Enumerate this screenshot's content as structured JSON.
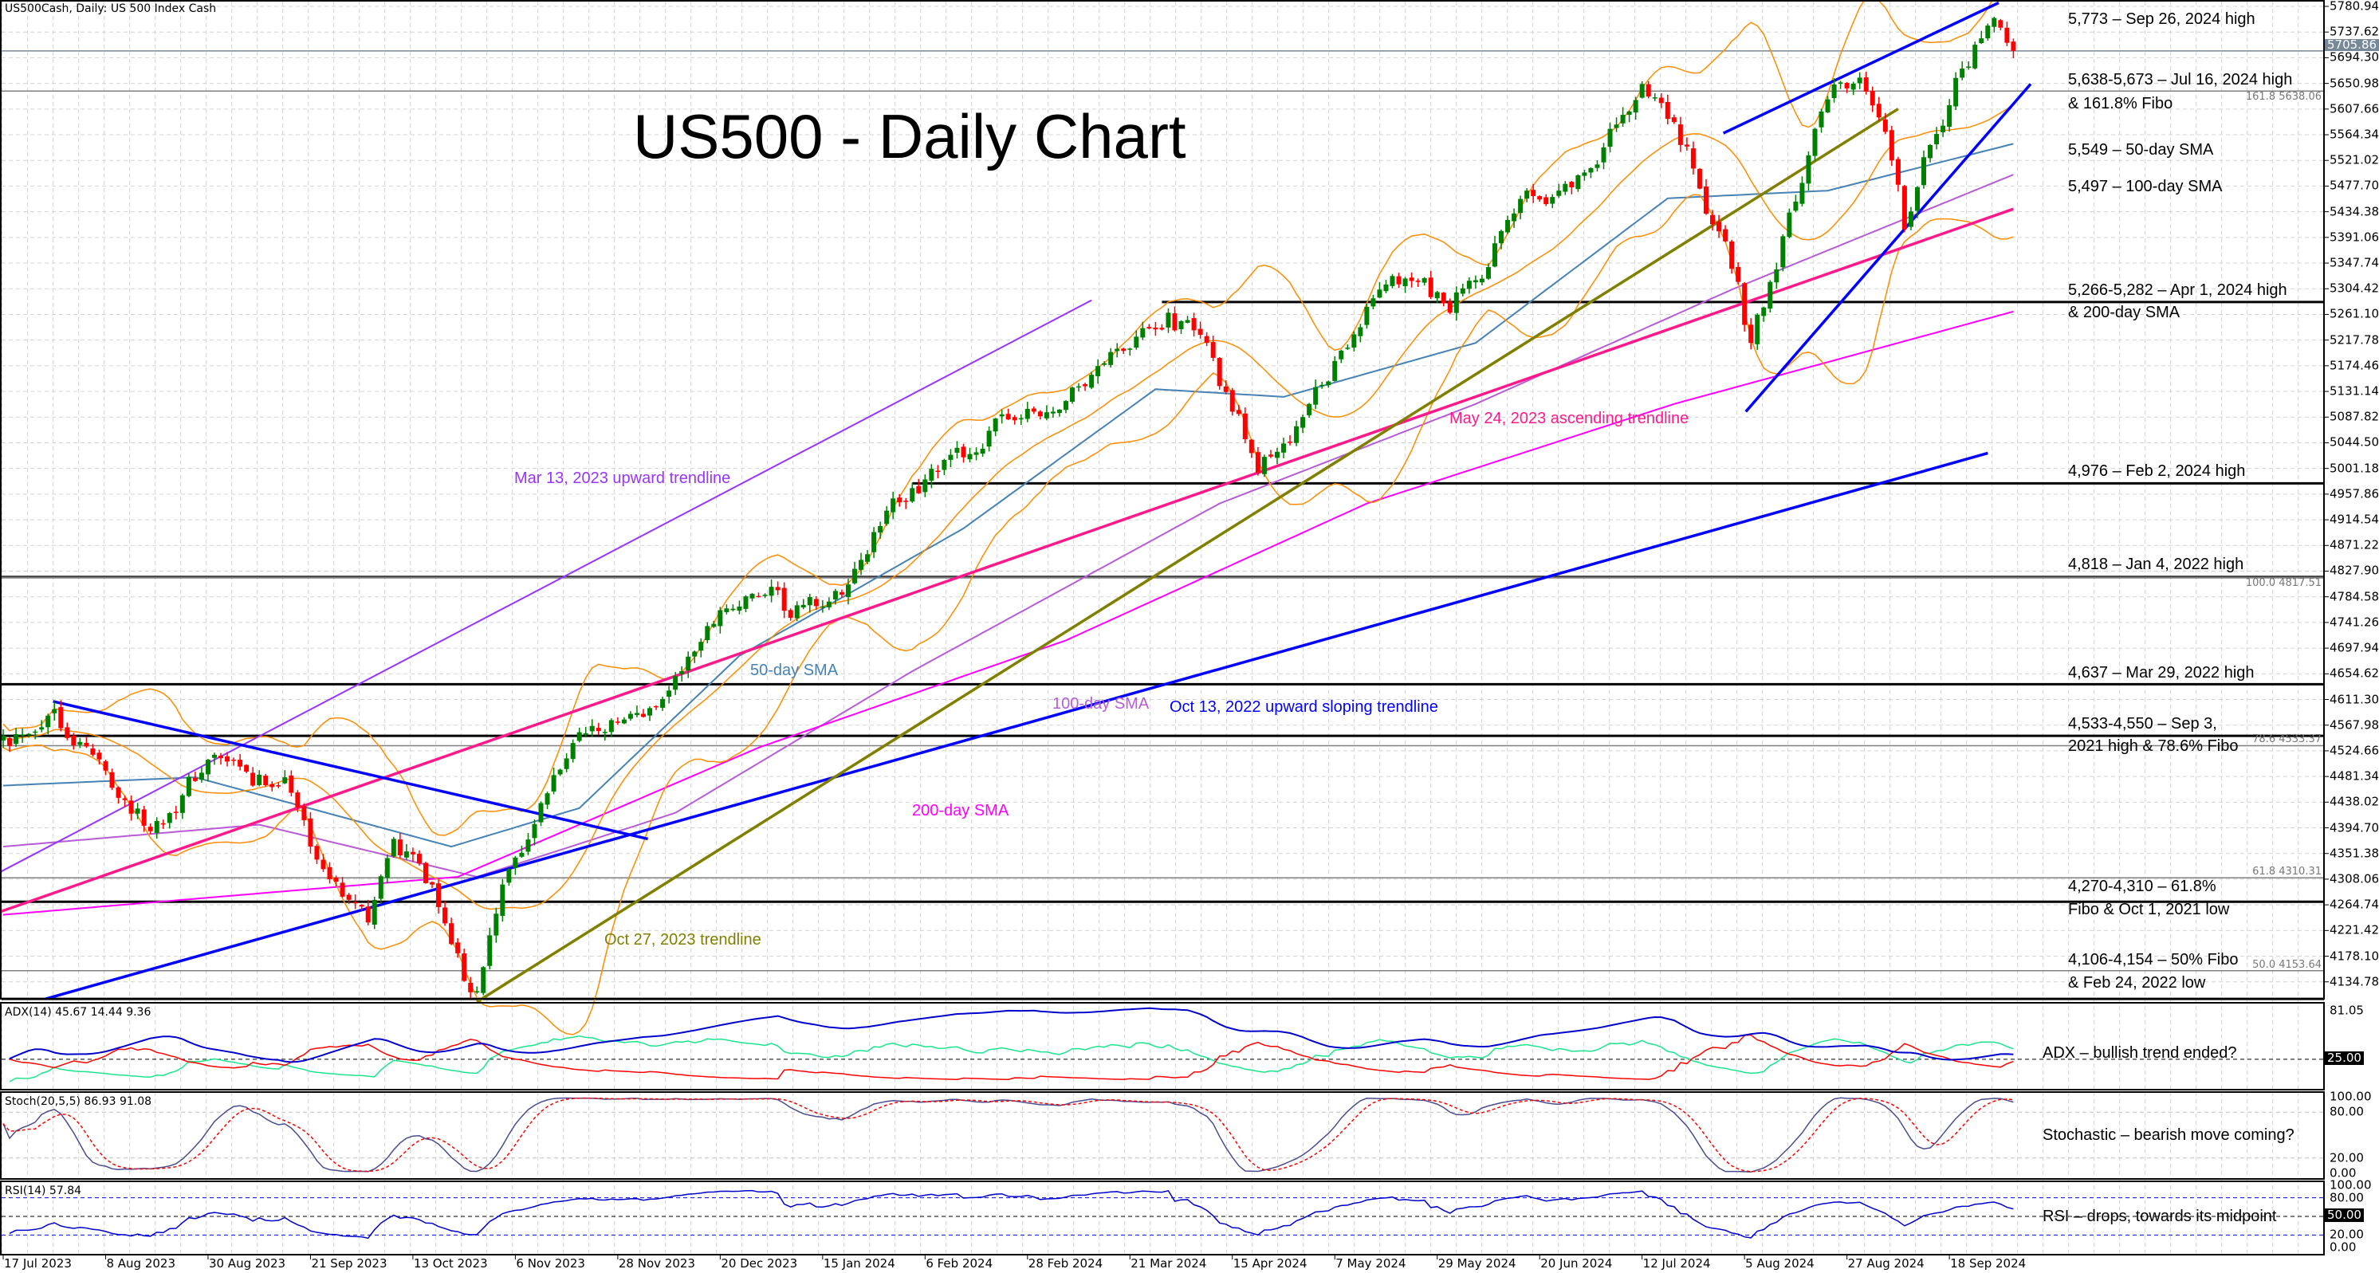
{
  "header": {
    "symbol_label": "US500Cash, Daily:  US 500 Index Cash"
  },
  "title": "US500 - Daily Chart",
  "annotations": {
    "a1": "5,773 – Sep 26, 2024 high",
    "a2": "5,638-5,673 – Jul 16, 2024 high",
    "a2b": "& 161.8% Fibo",
    "a3": "5,549 – 50-day SMA",
    "a4": "5,497 – 100-day SMA",
    "a5": "5,266-5,282 – Apr 1, 2024 high",
    "a5b": "& 200-day SMA",
    "a6": "4,976 – Feb 2, 2024 high",
    "a7": "4,818 – Jan 4, 2022 high",
    "a8": "4,637 – Mar 29, 2022 high",
    "a9": "4,533-4,550 – Sep 3,",
    "a9b": "2021 high & 78.6% Fibo",
    "a10": "4,270-4,310 – 61.8%",
    "a10b": "Fibo & Oct 1, 2021 low",
    "a11": "4,106-4,154 – 50% Fibo",
    "a11b": "& Feb 24, 2022 low",
    "adx": "ADX – bullish trend ended?",
    "stoch": "Stochastic – bearish move coming?",
    "rsi": "RSI – drops, towards its midpoint"
  },
  "chart_labels": {
    "mar13": "Mar 13, 2023 upward trendline",
    "sma50": "50-day SMA",
    "sma100": "100-day SMA",
    "sma200": "200-day SMA",
    "oct13": "Oct 13, 2022 upward sloping trendline",
    "oct27": "Oct 27, 2023 trendline",
    "may24": "May 24, 2023 ascending trendline"
  },
  "colors": {
    "bull": "#008000",
    "bear": "#ff0000",
    "bollinger": "#ff8c00",
    "sma50": "#4682b4",
    "sma100": "#b75bd6",
    "sma200": "#ff00ff",
    "mar13": "#9933ff",
    "may24": "#ff1a8c",
    "oct13": "#0000ff",
    "oct27": "#808000",
    "channel": "#0000ff"
  },
  "chart_data": {
    "type": "candlestick",
    "title": "US500 - Daily Chart",
    "bars": 315,
    "ylim": [
      4105,
      5790
    ],
    "y_ticks": [
      "5780.94",
      "5737.62",
      "5694.30",
      "5650.98",
      "5607.66",
      "5564.34",
      "5521.02",
      "5477.70",
      "5434.38",
      "5391.06",
      "5347.74",
      "5304.42",
      "5261.10",
      "5217.78",
      "5174.46",
      "5131.14",
      "5087.82",
      "5044.50",
      "5001.18",
      "4957.86",
      "4914.54",
      "4871.22",
      "4827.90",
      "4784.58",
      "4741.26",
      "4697.94",
      "4654.62",
      "4611.30",
      "4567.98",
      "4524.66",
      "4481.34",
      "4438.02",
      "4394.70",
      "4351.38",
      "4308.06",
      "4264.74",
      "4221.42",
      "4178.10",
      "4134.78"
    ],
    "x_ticks": [
      "17 Jul 2023",
      "8 Aug 2023",
      "30 Aug 2023",
      "21 Sep 2023",
      "13 Oct 2023",
      "6 Nov 2023",
      "28 Nov 2023",
      "20 Dec 2023",
      "15 Jan 2024",
      "6 Feb 2024",
      "28 Feb 2024",
      "21 Mar 2024",
      "15 Apr 2024",
      "7 May 2024",
      "29 May 2024",
      "20 Jun 2024",
      "12 Jul 2024",
      "5 Aug 2024",
      "27 Aug 2024",
      "18 Sep 2024"
    ],
    "x_tick_step_bars": 16,
    "current_price": "5705.86",
    "close_waypoints": [
      [
        0,
        4550
      ],
      [
        8,
        4595
      ],
      [
        14,
        4518
      ],
      [
        23,
        4389
      ],
      [
        33,
        4518
      ],
      [
        39,
        4466
      ],
      [
        44,
        4480
      ],
      [
        50,
        4325
      ],
      [
        57,
        4235
      ],
      [
        61,
        4376
      ],
      [
        67,
        4299
      ],
      [
        71,
        4183
      ],
      [
        74,
        4119
      ],
      [
        78,
        4299
      ],
      [
        85,
        4453
      ],
      [
        90,
        4556
      ],
      [
        100,
        4582
      ],
      [
        106,
        4659
      ],
      [
        112,
        4762
      ],
      [
        119,
        4788
      ],
      [
        123,
        4749
      ],
      [
        131,
        4788
      ],
      [
        137,
        4904
      ],
      [
        142,
        4968
      ],
      [
        150,
        5020
      ],
      [
        157,
        5084
      ],
      [
        164,
        5097
      ],
      [
        171,
        5174
      ],
      [
        178,
        5238
      ],
      [
        182,
        5264
      ],
      [
        188,
        5213
      ],
      [
        192,
        5097
      ],
      [
        196,
        4994
      ],
      [
        201,
        5045
      ],
      [
        204,
        5110
      ],
      [
        209,
        5200
      ],
      [
        215,
        5303
      ],
      [
        221,
        5316
      ],
      [
        226,
        5264
      ],
      [
        232,
        5341
      ],
      [
        238,
        5470
      ],
      [
        243,
        5470
      ],
      [
        248,
        5508
      ],
      [
        256,
        5650
      ],
      [
        262,
        5547
      ],
      [
        266,
        5431
      ],
      [
        271,
        5316
      ],
      [
        273,
        5213
      ],
      [
        276,
        5316
      ],
      [
        281,
        5483
      ],
      [
        285,
        5624
      ],
      [
        291,
        5637
      ],
      [
        295,
        5521
      ],
      [
        297,
        5405
      ],
      [
        301,
        5547
      ],
      [
        306,
        5676
      ],
      [
        309,
        5727
      ],
      [
        312,
        5745
      ],
      [
        314,
        5705.86
      ]
    ],
    "sma50": [
      [
        0,
        4466
      ],
      [
        30,
        4480
      ],
      [
        70,
        4363
      ],
      [
        90,
        4428
      ],
      [
        115,
        4685
      ],
      [
        150,
        4900
      ],
      [
        180,
        5135
      ],
      [
        200,
        5122
      ],
      [
        230,
        5213
      ],
      [
        260,
        5457
      ],
      [
        285,
        5470
      ],
      [
        314,
        5549
      ]
    ],
    "sma100": [
      [
        0,
        4363
      ],
      [
        40,
        4400
      ],
      [
        74,
        4312
      ],
      [
        105,
        4420
      ],
      [
        142,
        4659
      ],
      [
        190,
        4942
      ],
      [
        230,
        5110
      ],
      [
        270,
        5303
      ],
      [
        314,
        5497
      ]
    ],
    "sma200": [
      [
        0,
        4248
      ],
      [
        71,
        4312
      ],
      [
        118,
        4530
      ],
      [
        166,
        4711
      ],
      [
        213,
        4942
      ],
      [
        261,
        5110
      ],
      [
        314,
        5266
      ]
    ],
    "trendlines": [
      {
        "name": "mar13",
        "points": [
          [
            -0.5,
            4320
          ],
          [
            170,
            5285
          ]
        ]
      },
      {
        "name": "may24",
        "points": [
          [
            -0.5,
            4253
          ],
          [
            314,
            5439
          ]
        ]
      },
      {
        "name": "oct13",
        "points": [
          [
            6.6,
            4106
          ],
          [
            310,
            5027
          ]
        ]
      },
      {
        "name": "oct27",
        "points": [
          [
            74,
            4101
          ],
          [
            296,
            5608
          ]
        ]
      },
      {
        "name": "downtrend",
        "points": [
          [
            7.8,
            4608
          ],
          [
            100.7,
            4376
          ]
        ]
      },
      {
        "name": "channel_upper",
        "points": [
          [
            268.7,
            5567
          ],
          [
            311.7,
            5787
          ]
        ]
      },
      {
        "name": "channel_lower",
        "points": [
          [
            272.2,
            5097
          ],
          [
            316.7,
            5650
          ]
        ]
      }
    ],
    "levels": [
      {
        "price": 5705.86,
        "style": "current",
        "from_bar": -1
      },
      {
        "price": 5638.06,
        "style": "fib",
        "from_bar": -1,
        "label": "161.8 5638.06"
      },
      {
        "price": 5282,
        "style": "level",
        "from_bar": 181
      },
      {
        "price": 4976,
        "style": "level",
        "from_bar": 142
      },
      {
        "price": 4818,
        "style": "level",
        "from_bar": -1
      },
      {
        "price": 4817.51,
        "style": "fib",
        "from_bar": -1,
        "label": "100.0 4817.51"
      },
      {
        "price": 4637,
        "style": "level",
        "from_bar": -1
      },
      {
        "price": 4550,
        "style": "level",
        "from_bar": -1
      },
      {
        "price": 4533.37,
        "style": "fib",
        "from_bar": -1,
        "label": "78.6 4533.37"
      },
      {
        "price": 4310.31,
        "style": "fib",
        "from_bar": -1,
        "label": "61.8 4310.31"
      },
      {
        "price": 4270,
        "style": "level",
        "from_bar": -1
      },
      {
        "price": 4153.64,
        "style": "fib",
        "from_bar": -1,
        "label": "50.0 4153.64"
      },
      {
        "price": 4106,
        "style": "level",
        "from_bar": -1
      }
    ],
    "indicators": {
      "adx": {
        "title": "ADX(14) 45.67 14.44 9.36",
        "ticks": [
          "81.05",
          "25.00"
        ],
        "max": 81.05,
        "level": 25
      },
      "stoch": {
        "title": "Stoch(20,5,5) 86.93 91.08",
        "ticks": [
          "100.00",
          "80.00",
          "20.00",
          "0.00"
        ]
      },
      "rsi": {
        "title": "RSI(14) 57.84",
        "ticks": [
          "100.00",
          "80.00",
          "50.00",
          "20.00",
          "0.00"
        ]
      }
    }
  }
}
